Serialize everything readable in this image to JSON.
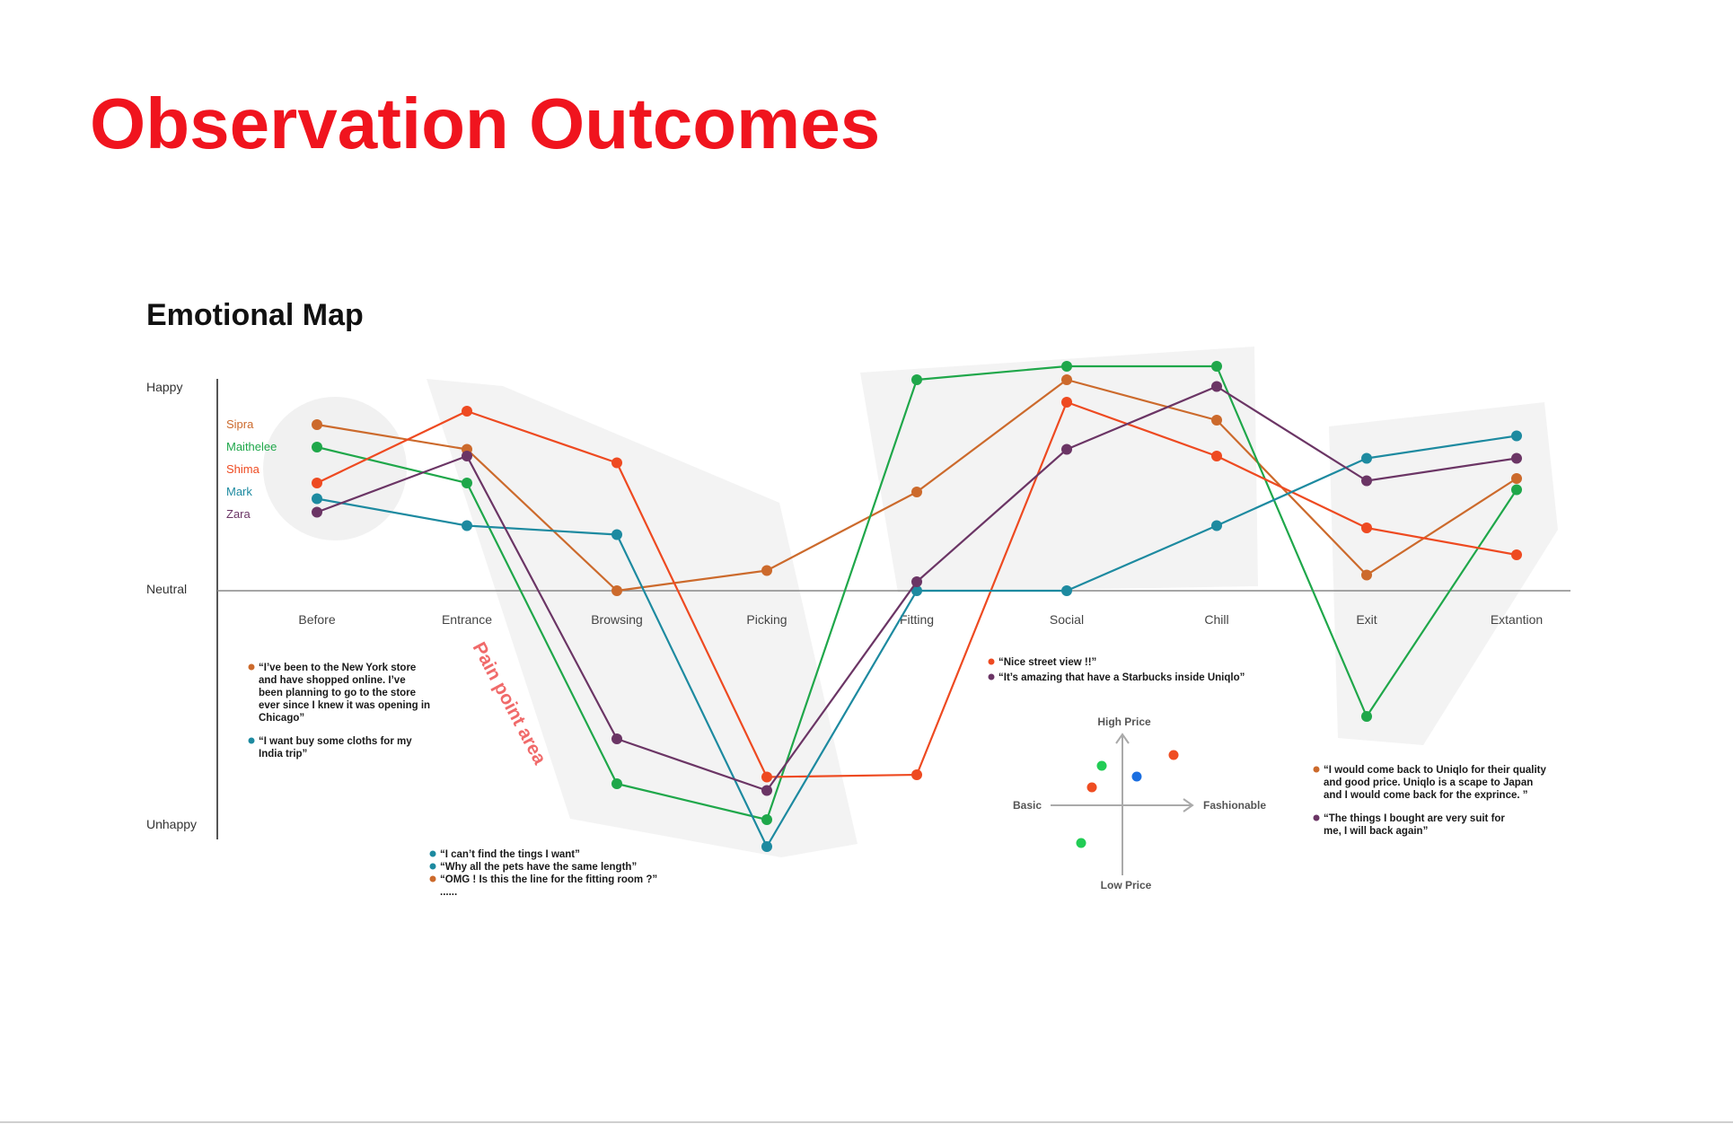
{
  "page": {
    "title": "Observation Outcomes"
  },
  "chart_data": {
    "type": "line",
    "title": "Emotional Map",
    "categories": [
      "Before",
      "Entrance",
      "Browsing",
      "Picking",
      "Fitting",
      "Social",
      "Chill",
      "Exit",
      "Extantion"
    ],
    "y_axis": {
      "labels": [
        "Happy",
        "Neutral",
        "Unhappy"
      ],
      "range": [
        -1,
        1
      ]
    },
    "grid": false,
    "legend_position": "left",
    "series": [
      {
        "name": "Sipra",
        "color": "#cc6a2c",
        "values": [
          0.74,
          0.63,
          0.0,
          0.09,
          0.44,
          0.94,
          0.76,
          0.07,
          0.5
        ]
      },
      {
        "name": "Maithelee",
        "color": "#1fa74a",
        "values": [
          0.64,
          0.48,
          -0.86,
          -1.02,
          0.94,
          1.0,
          1.0,
          -0.56,
          0.45
        ]
      },
      {
        "name": "Shima",
        "color": "#ee4a21",
        "values": [
          0.48,
          0.8,
          0.57,
          -0.83,
          -0.82,
          0.84,
          0.6,
          0.28,
          0.16
        ]
      },
      {
        "name": "Mark",
        "color": "#1d8aa0",
        "values": [
          0.41,
          0.29,
          0.25,
          -1.14,
          0.0,
          0.0,
          0.29,
          0.59,
          0.69
        ]
      },
      {
        "name": "Zara",
        "color": "#6b3565",
        "values": [
          0.35,
          0.6,
          -0.66,
          -0.89,
          0.04,
          0.63,
          0.91,
          0.49,
          0.59
        ]
      }
    ],
    "annotations": [
      {
        "id": "pain",
        "text": "Pain point area",
        "color": "#f06a6a"
      }
    ]
  },
  "quotes": {
    "before": [
      {
        "series": "Sipra",
        "lines": [
          "“I’ve been to the New York store",
          "and have shopped online. I’ve",
          "been planning to go to the store",
          "ever since I knew it was opening in",
          "Chicago”"
        ]
      },
      {
        "series": "Mark",
        "lines": [
          "“I want buy some cloths for my",
          "India trip”"
        ]
      }
    ],
    "pain": [
      {
        "series": "Mark",
        "lines": [
          "“I can’t find the tings I want”"
        ]
      },
      {
        "series": "Mark",
        "lines": [
          "“Why all the pets have the same length”"
        ]
      },
      {
        "series": "Sipra",
        "lines": [
          "“OMG ! Is this the line for the fitting room ?”"
        ]
      }
    ],
    "pain_more": "......",
    "social": [
      {
        "series": "Shima",
        "lines": [
          "“Nice street view !!”"
        ]
      },
      {
        "series": "Zara",
        "lines": [
          "“It’s amazing that have a Starbucks inside Uniqlo”"
        ]
      }
    ],
    "exit": [
      {
        "series": "Sipra",
        "lines": [
          "“I would come back to Uniqlo for their quality",
          "and good price. Uniqlo is a scape to Japan",
          "and I would come back for the exprince. ”"
        ]
      },
      {
        "series": "Zara",
        "lines": [
          "“The things I bought are very suit for",
          "me, I will back again”"
        ]
      }
    ]
  },
  "positioning_map": {
    "high_label": "High Price",
    "low_label": "Low Price",
    "left_label": "Basic",
    "right_label": "Fashionable",
    "dots": [
      {
        "color": "#22cc55"
      },
      {
        "color": "#ef4d22"
      },
      {
        "color": "#1b6fe0"
      },
      {
        "color": "#ef4d22"
      },
      {
        "color": "#22cc55"
      }
    ]
  }
}
